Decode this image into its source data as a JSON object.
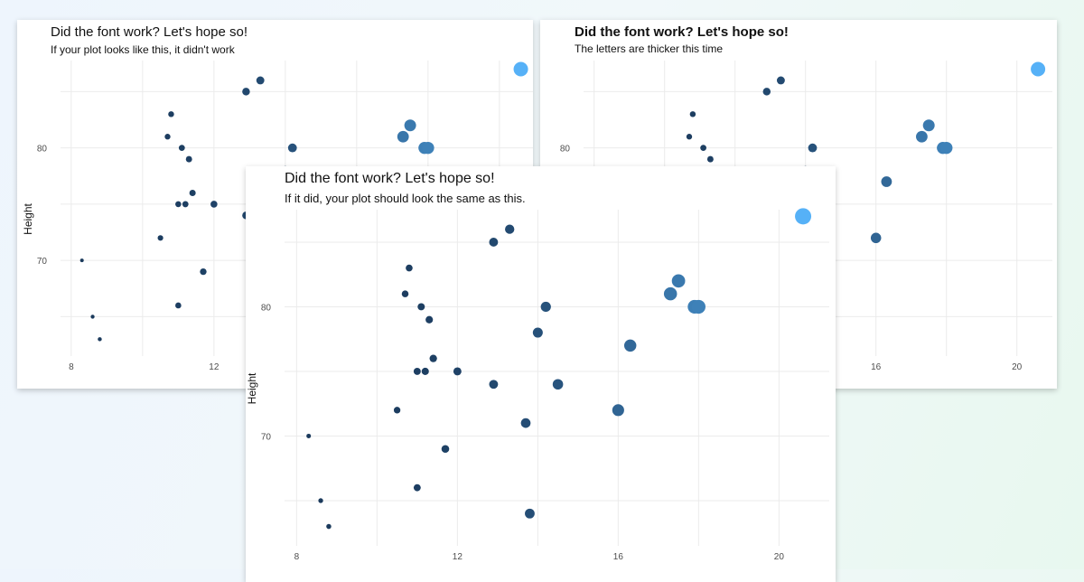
{
  "panels": [
    {
      "title": "Did the font work? Let's hope so!",
      "subtitle": "If your plot looks like this, it didn't work"
    },
    {
      "title": "Did the font work? Let's hope so!",
      "subtitle": "The letters are thicker this time"
    },
    {
      "title": "Did the font work? Let's hope so!",
      "subtitle": "If it did, your plot should look the same as this."
    }
  ],
  "chart_data": {
    "type": "scatter",
    "ylabel": "Height",
    "xlabel": "",
    "xlim": [
      7.7,
      21.3
    ],
    "ylim": [
      61.5,
      88.5
    ],
    "x_ticks": [
      8,
      12,
      16,
      20
    ],
    "y_ticks": [
      70,
      80
    ],
    "grid": true,
    "legend": "none",
    "color_low": "#1b3a5c",
    "color_high": "#56b1f7",
    "points": [
      {
        "x": 8.3,
        "y": 70
      },
      {
        "x": 8.6,
        "y": 65
      },
      {
        "x": 8.8,
        "y": 63
      },
      {
        "x": 10.5,
        "y": 72
      },
      {
        "x": 10.7,
        "y": 81
      },
      {
        "x": 10.8,
        "y": 83
      },
      {
        "x": 11.0,
        "y": 66
      },
      {
        "x": 11.0,
        "y": 75
      },
      {
        "x": 11.1,
        "y": 80
      },
      {
        "x": 11.2,
        "y": 75
      },
      {
        "x": 11.3,
        "y": 79
      },
      {
        "x": 11.4,
        "y": 76
      },
      {
        "x": 11.7,
        "y": 69
      },
      {
        "x": 12.0,
        "y": 75
      },
      {
        "x": 12.9,
        "y": 74
      },
      {
        "x": 12.9,
        "y": 85
      },
      {
        "x": 13.3,
        "y": 86
      },
      {
        "x": 13.7,
        "y": 71
      },
      {
        "x": 13.8,
        "y": 64
      },
      {
        "x": 14.0,
        "y": 78
      },
      {
        "x": 14.2,
        "y": 80
      },
      {
        "x": 14.5,
        "y": 74
      },
      {
        "x": 16.0,
        "y": 72
      },
      {
        "x": 16.3,
        "y": 77
      },
      {
        "x": 17.3,
        "y": 81
      },
      {
        "x": 17.5,
        "y": 82
      },
      {
        "x": 17.9,
        "y": 80
      },
      {
        "x": 18.0,
        "y": 80
      },
      {
        "x": 20.6,
        "y": 87
      }
    ]
  }
}
